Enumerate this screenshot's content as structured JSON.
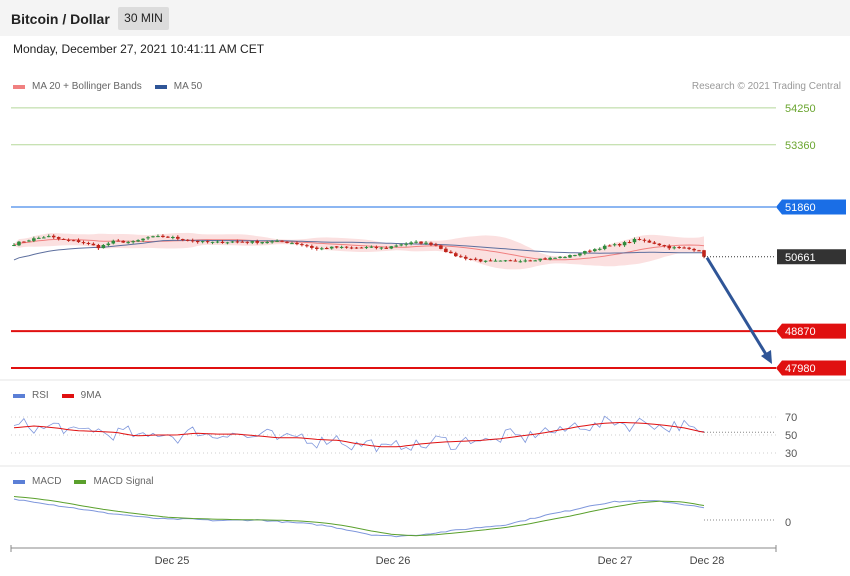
{
  "header": {
    "title": "Bitcoin / Dollar",
    "timeframe": "30 MIN"
  },
  "datetime": "Monday, December 27, 2021 10:41:11 AM CET",
  "legend_main": [
    {
      "label": "MA 20 + Bollinger Bands",
      "color": "#f08080"
    },
    {
      "label": "MA 50",
      "color": "#2f5597"
    }
  ],
  "copyright": "Research © 2021 Trading Central",
  "legend_rsi": [
    {
      "label": "RSI",
      "color": "#5b7fd6"
    },
    {
      "label": "9MA",
      "color": "#e01010"
    }
  ],
  "legend_macd": [
    {
      "label": "MACD",
      "color": "#5b7fd6"
    },
    {
      "label": "MACD Signal",
      "color": "#5aa02c"
    }
  ],
  "chart_data": [
    {
      "type": "candlestick",
      "title": "Bitcoin / Dollar",
      "timeframe": "30 MIN",
      "x_ticks": [
        "Dec 25",
        "Dec 26",
        "Dec 27",
        "Dec 28"
      ],
      "last_price": 50661,
      "series": [
        {
          "name": "MA 20 + Bollinger Bands",
          "color": "#f08080"
        },
        {
          "name": "MA 50",
          "color": "#2f5597"
        }
      ],
      "levels": [
        {
          "value": 54250,
          "label": "54250",
          "color": "#7cb342",
          "kind": "resistance"
        },
        {
          "value": 53360,
          "label": "53360",
          "color": "#7cb342",
          "kind": "resistance"
        },
        {
          "value": 51860,
          "label": "51860",
          "color": "#1a6ee6",
          "kind": "pivot"
        },
        {
          "value": 50661,
          "label": "50661",
          "color": "#333333",
          "kind": "last"
        },
        {
          "value": 48870,
          "label": "48870",
          "color": "#e01010",
          "kind": "support"
        },
        {
          "value": 47980,
          "label": "47980",
          "color": "#e01010",
          "kind": "support"
        }
      ],
      "close_path": [
        50969,
        51081,
        51151,
        51058,
        51022,
        50889,
        51039,
        51005,
        51130,
        51145,
        51088,
        51018,
        51007,
        51026,
        51015,
        51023,
        51024,
        50967,
        50846,
        50888,
        50871,
        50885,
        50870,
        50966,
        51009,
        50958,
        50713,
        50617,
        50544,
        50550,
        50574,
        50599,
        50628,
        50679,
        50787,
        50898,
        50960,
        51082,
        50992,
        50881,
        50855,
        50818
      ],
      "projection": {
        "target": 47980,
        "direction": "down"
      }
    },
    {
      "type": "line",
      "title": "RSI",
      "y_ticks": [
        70,
        50,
        30
      ],
      "series": [
        {
          "name": "RSI",
          "color": "#5b7fd6"
        },
        {
          "name": "9MA",
          "color": "#e01010"
        }
      ],
      "rsi_ma_path": [
        58,
        60,
        58,
        55,
        54,
        53,
        49,
        50,
        50,
        52,
        51,
        51,
        49,
        47,
        47,
        45,
        44,
        40,
        37,
        37,
        40,
        42,
        43,
        44,
        46,
        49,
        52,
        56,
        60,
        63,
        64,
        63,
        61,
        58,
        53
      ]
    },
    {
      "type": "line",
      "title": "MACD",
      "y_ticks": [
        0
      ],
      "series": [
        {
          "name": "MACD",
          "color": "#5b7fd6"
        },
        {
          "name": "MACD Signal",
          "color": "#5aa02c"
        }
      ],
      "macd_path": [
        172,
        150,
        119,
        91,
        61,
        42,
        19,
        6,
        8,
        -5,
        -2,
        1,
        -15,
        -28,
        -47,
        -82,
        -121,
        -136,
        -127,
        -106,
        -82,
        -60,
        -43,
        0,
        45,
        80,
        125,
        152,
        159,
        157,
        133,
        101
      ],
      "signal_path": [
        196,
        178,
        153,
        120,
        89,
        64,
        41,
        22,
        13,
        7,
        3,
        1,
        -2,
        -10,
        -25,
        -52,
        -90,
        -120,
        -131,
        -122,
        -105,
        -84,
        -65,
        -37,
        0,
        33,
        74,
        110,
        141,
        157,
        152,
        121
      ]
    }
  ]
}
